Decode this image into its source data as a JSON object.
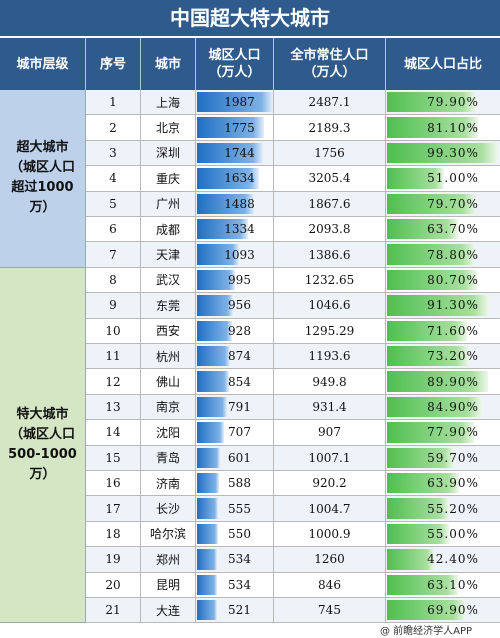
{
  "title": "中国超大特大城市",
  "headers": {
    "tier": "城市层级",
    "index": "序号",
    "city": "城市",
    "urban_pop_1": "城区人口",
    "urban_pop_2": "（万人）",
    "total_pop_1": "全市常住人口",
    "total_pop_2": "（万人）",
    "ratio": "城区人口占比"
  },
  "tiers": [
    {
      "name": "超大城市\n（城区人口\n超过1000\n万）",
      "rows": 7
    },
    {
      "name": "特大城市\n（城区人口\n500-1000\n万）",
      "rows": 14
    }
  ],
  "rows": [
    {
      "index": "1",
      "city": "上海",
      "urban_pop": "1987",
      "total_pop": "2487.1",
      "ratio": "79.90%",
      "pop_value": 1987,
      "ratio_value": 79.9
    },
    {
      "index": "2",
      "city": "北京",
      "urban_pop": "1775",
      "total_pop": "2189.3",
      "ratio": "81.10%",
      "pop_value": 1775,
      "ratio_value": 81.1
    },
    {
      "index": "3",
      "city": "深圳",
      "urban_pop": "1744",
      "total_pop": "1756",
      "ratio": "99.30%",
      "pop_value": 1744,
      "ratio_value": 99.3
    },
    {
      "index": "4",
      "city": "重庆",
      "urban_pop": "1634",
      "total_pop": "3205.4",
      "ratio": "51.00%",
      "pop_value": 1634,
      "ratio_value": 51.0
    },
    {
      "index": "5",
      "city": "广州",
      "urban_pop": "1488",
      "total_pop": "1867.6",
      "ratio": "79.70%",
      "pop_value": 1488,
      "ratio_value": 79.7
    },
    {
      "index": "6",
      "city": "成都",
      "urban_pop": "1334",
      "total_pop": "2093.8",
      "ratio": "63.70%",
      "pop_value": 1334,
      "ratio_value": 63.7
    },
    {
      "index": "7",
      "city": "天津",
      "urban_pop": "1093",
      "total_pop": "1386.6",
      "ratio": "78.80%",
      "pop_value": 1093,
      "ratio_value": 78.8
    },
    {
      "index": "8",
      "city": "武汉",
      "urban_pop": "995",
      "total_pop": "1232.65",
      "ratio": "80.70%",
      "pop_value": 995,
      "ratio_value": 80.7
    },
    {
      "index": "9",
      "city": "东莞",
      "urban_pop": "956",
      "total_pop": "1046.6",
      "ratio": "91.30%",
      "pop_value": 956,
      "ratio_value": 91.3
    },
    {
      "index": "10",
      "city": "西安",
      "urban_pop": "928",
      "total_pop": "1295.29",
      "ratio": "71.60%",
      "pop_value": 928,
      "ratio_value": 71.6
    },
    {
      "index": "11",
      "city": "杭州",
      "urban_pop": "874",
      "total_pop": "1193.6",
      "ratio": "73.20%",
      "pop_value": 874,
      "ratio_value": 73.2
    },
    {
      "index": "12",
      "city": "佛山",
      "urban_pop": "854",
      "total_pop": "949.8",
      "ratio": "89.90%",
      "pop_value": 854,
      "ratio_value": 89.9
    },
    {
      "index": "13",
      "city": "南京",
      "urban_pop": "791",
      "total_pop": "931.4",
      "ratio": "84.90%",
      "pop_value": 791,
      "ratio_value": 84.9
    },
    {
      "index": "14",
      "city": "沈阳",
      "urban_pop": "707",
      "total_pop": "907",
      "ratio": "77.90%",
      "pop_value": 707,
      "ratio_value": 77.9
    },
    {
      "index": "15",
      "city": "青岛",
      "urban_pop": "601",
      "total_pop": "1007.1",
      "ratio": "59.70%",
      "pop_value": 601,
      "ratio_value": 59.7
    },
    {
      "index": "16",
      "city": "济南",
      "urban_pop": "588",
      "total_pop": "920.2",
      "ratio": "63.90%",
      "pop_value": 588,
      "ratio_value": 63.9
    },
    {
      "index": "17",
      "city": "长沙",
      "urban_pop": "555",
      "total_pop": "1004.7",
      "ratio": "55.20%",
      "pop_value": 555,
      "ratio_value": 55.2
    },
    {
      "index": "18",
      "city": "哈尔滨",
      "urban_pop": "550",
      "total_pop": "1000.9",
      "ratio": "55.00%",
      "pop_value": 550,
      "ratio_value": 55.0
    },
    {
      "index": "19",
      "city": "郑州",
      "urban_pop": "534",
      "total_pop": "1260",
      "ratio": "42.40%",
      "pop_value": 534,
      "ratio_value": 42.4
    },
    {
      "index": "20",
      "city": "昆明",
      "urban_pop": "534",
      "total_pop": "846",
      "ratio": "63.10%",
      "pop_value": 534,
      "ratio_value": 63.1
    },
    {
      "index": "21",
      "city": "大连",
      "urban_pop": "521",
      "total_pop": "745",
      "ratio": "69.90%",
      "pop_value": 521,
      "ratio_value": 69.9
    }
  ],
  "footer": "@ 前瞻经济学人APP",
  "colors": {
    "header_bg": "#2e5a8c",
    "tier1_bg": "#bdd1ea",
    "tier2_bg": "#d5e6c5",
    "pop_bar": "#1f6fc4",
    "ratio_bar": "#4fbf4f"
  }
}
